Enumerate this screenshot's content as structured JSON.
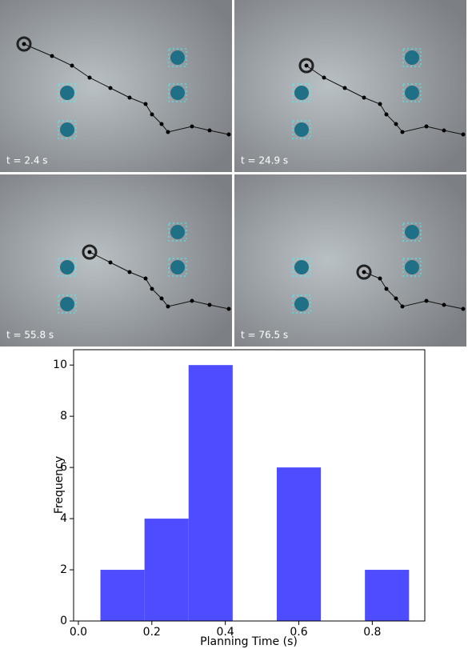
{
  "panels": [
    {
      "label": "t = 2.4 s"
    },
    {
      "label": "t = 24.9 s"
    },
    {
      "label": "t = 55.8 s"
    },
    {
      "label": "t = 76.5 s"
    }
  ],
  "chart_data": {
    "type": "histogram",
    "xlabel": "Planning Time (s)",
    "ylabel": "Frequency",
    "bins": [
      0.06,
      0.18,
      0.3,
      0.42,
      0.54,
      0.66,
      0.78,
      0.9
    ],
    "values": [
      2,
      4,
      10,
      0,
      6,
      0,
      2
    ],
    "color": "#4d4dff",
    "xlim": [
      -0.013,
      0.943
    ],
    "ylim": [
      0,
      10.6
    ],
    "xticks": [
      {
        "value": 0.0,
        "label": "0.0"
      },
      0.2,
      0.4,
      0.6,
      0.8
    ],
    "yticks": [
      0,
      2,
      4,
      6,
      8,
      10
    ]
  }
}
